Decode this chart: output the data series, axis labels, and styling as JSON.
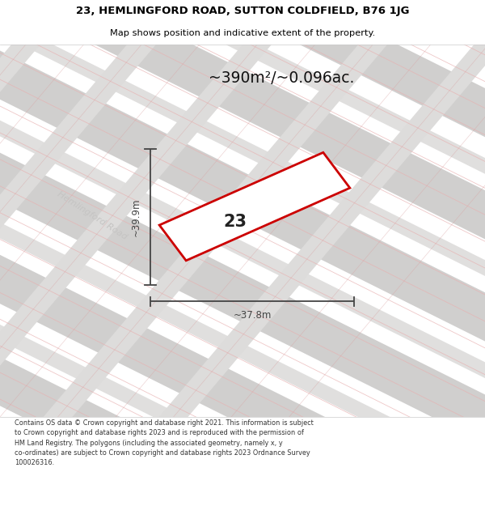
{
  "title_line1": "23, HEMLINGFORD ROAD, SUTTON COLDFIELD, B76 1JG",
  "title_line2": "Map shows position and indicative extent of the property.",
  "area_text": "~390m²/~0.096ac.",
  "property_number": "23",
  "dim_vertical": "~39.9m",
  "dim_horizontal": "~37.8m",
  "road_label": "Hemlingford Road",
  "footer_text": "Contains OS data © Crown copyright and database right 2021. This information is subject to Crown copyright and database rights 2023 and is reproduced with the permission of HM Land Registry. The polygons (including the associated geometry, namely x, y co-ordinates) are subject to Crown copyright and database rights 2023 Ordnance Survey 100026316.",
  "map_bg": "#f0efee",
  "gray_band_color_dark": "#d0cfce",
  "gray_band_color_med": "#d8d7d6",
  "gray_band_color_light": "#e4e3e2",
  "hatch_line_color": "#e8b0b0",
  "hatch_line_color2": "#d9a0a0",
  "property_edge_color": "#cc0000",
  "property_fill": "#ffffff",
  "dim_color": "#444444",
  "road_label_color": "#c5c4c3",
  "area_text_color": "#111111",
  "title_color": "#000000",
  "footer_color": "#333333"
}
